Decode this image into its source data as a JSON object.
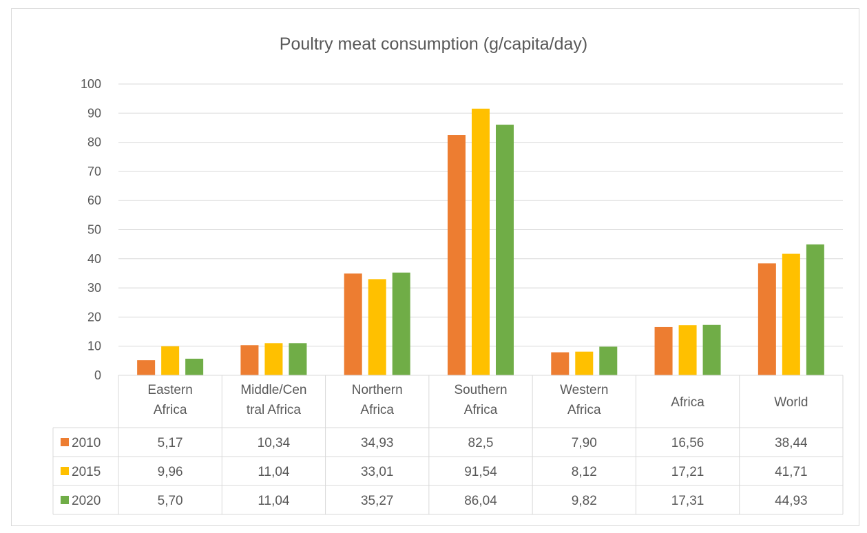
{
  "chart_data": {
    "type": "bar",
    "title": "Poultry meat consumption (g/capita/day)",
    "categories": [
      [
        "Eastern",
        "Africa"
      ],
      [
        "Middle/Cen",
        "tral Africa"
      ],
      [
        "Northern",
        "Africa"
      ],
      [
        "Southern",
        "Africa"
      ],
      [
        "Western",
        "Africa"
      ],
      [
        "Africa"
      ],
      [
        "World"
      ]
    ],
    "ylim": [
      0,
      100
    ],
    "yticks": [
      "0",
      "10",
      "20",
      "30",
      "40",
      "50",
      "60",
      "70",
      "80",
      "90",
      "100"
    ],
    "grid": true,
    "legend_placement": "data-table",
    "series": [
      {
        "name": "2010",
        "color": "#ed7d31",
        "values": [
          5.17,
          10.34,
          34.93,
          82.5,
          7.9,
          16.56,
          38.44
        ],
        "labels": [
          "5,17",
          "10,34",
          "34,93",
          "82,5",
          "7,90",
          "16,56",
          "38,44"
        ]
      },
      {
        "name": "2015",
        "color": "#ffc000",
        "values": [
          9.96,
          11.04,
          33.01,
          91.54,
          8.12,
          17.21,
          41.71
        ],
        "labels": [
          "9,96",
          "11,04",
          "33,01",
          "91,54",
          "8,12",
          "17,21",
          "41,71"
        ]
      },
      {
        "name": "2020",
        "color": "#70ad47",
        "values": [
          5.7,
          11.04,
          35.27,
          86.04,
          9.82,
          17.31,
          44.93
        ],
        "labels": [
          "5,70",
          "11,04",
          "35,27",
          "86,04",
          "9,82",
          "17,31",
          "44,93"
        ]
      }
    ]
  }
}
